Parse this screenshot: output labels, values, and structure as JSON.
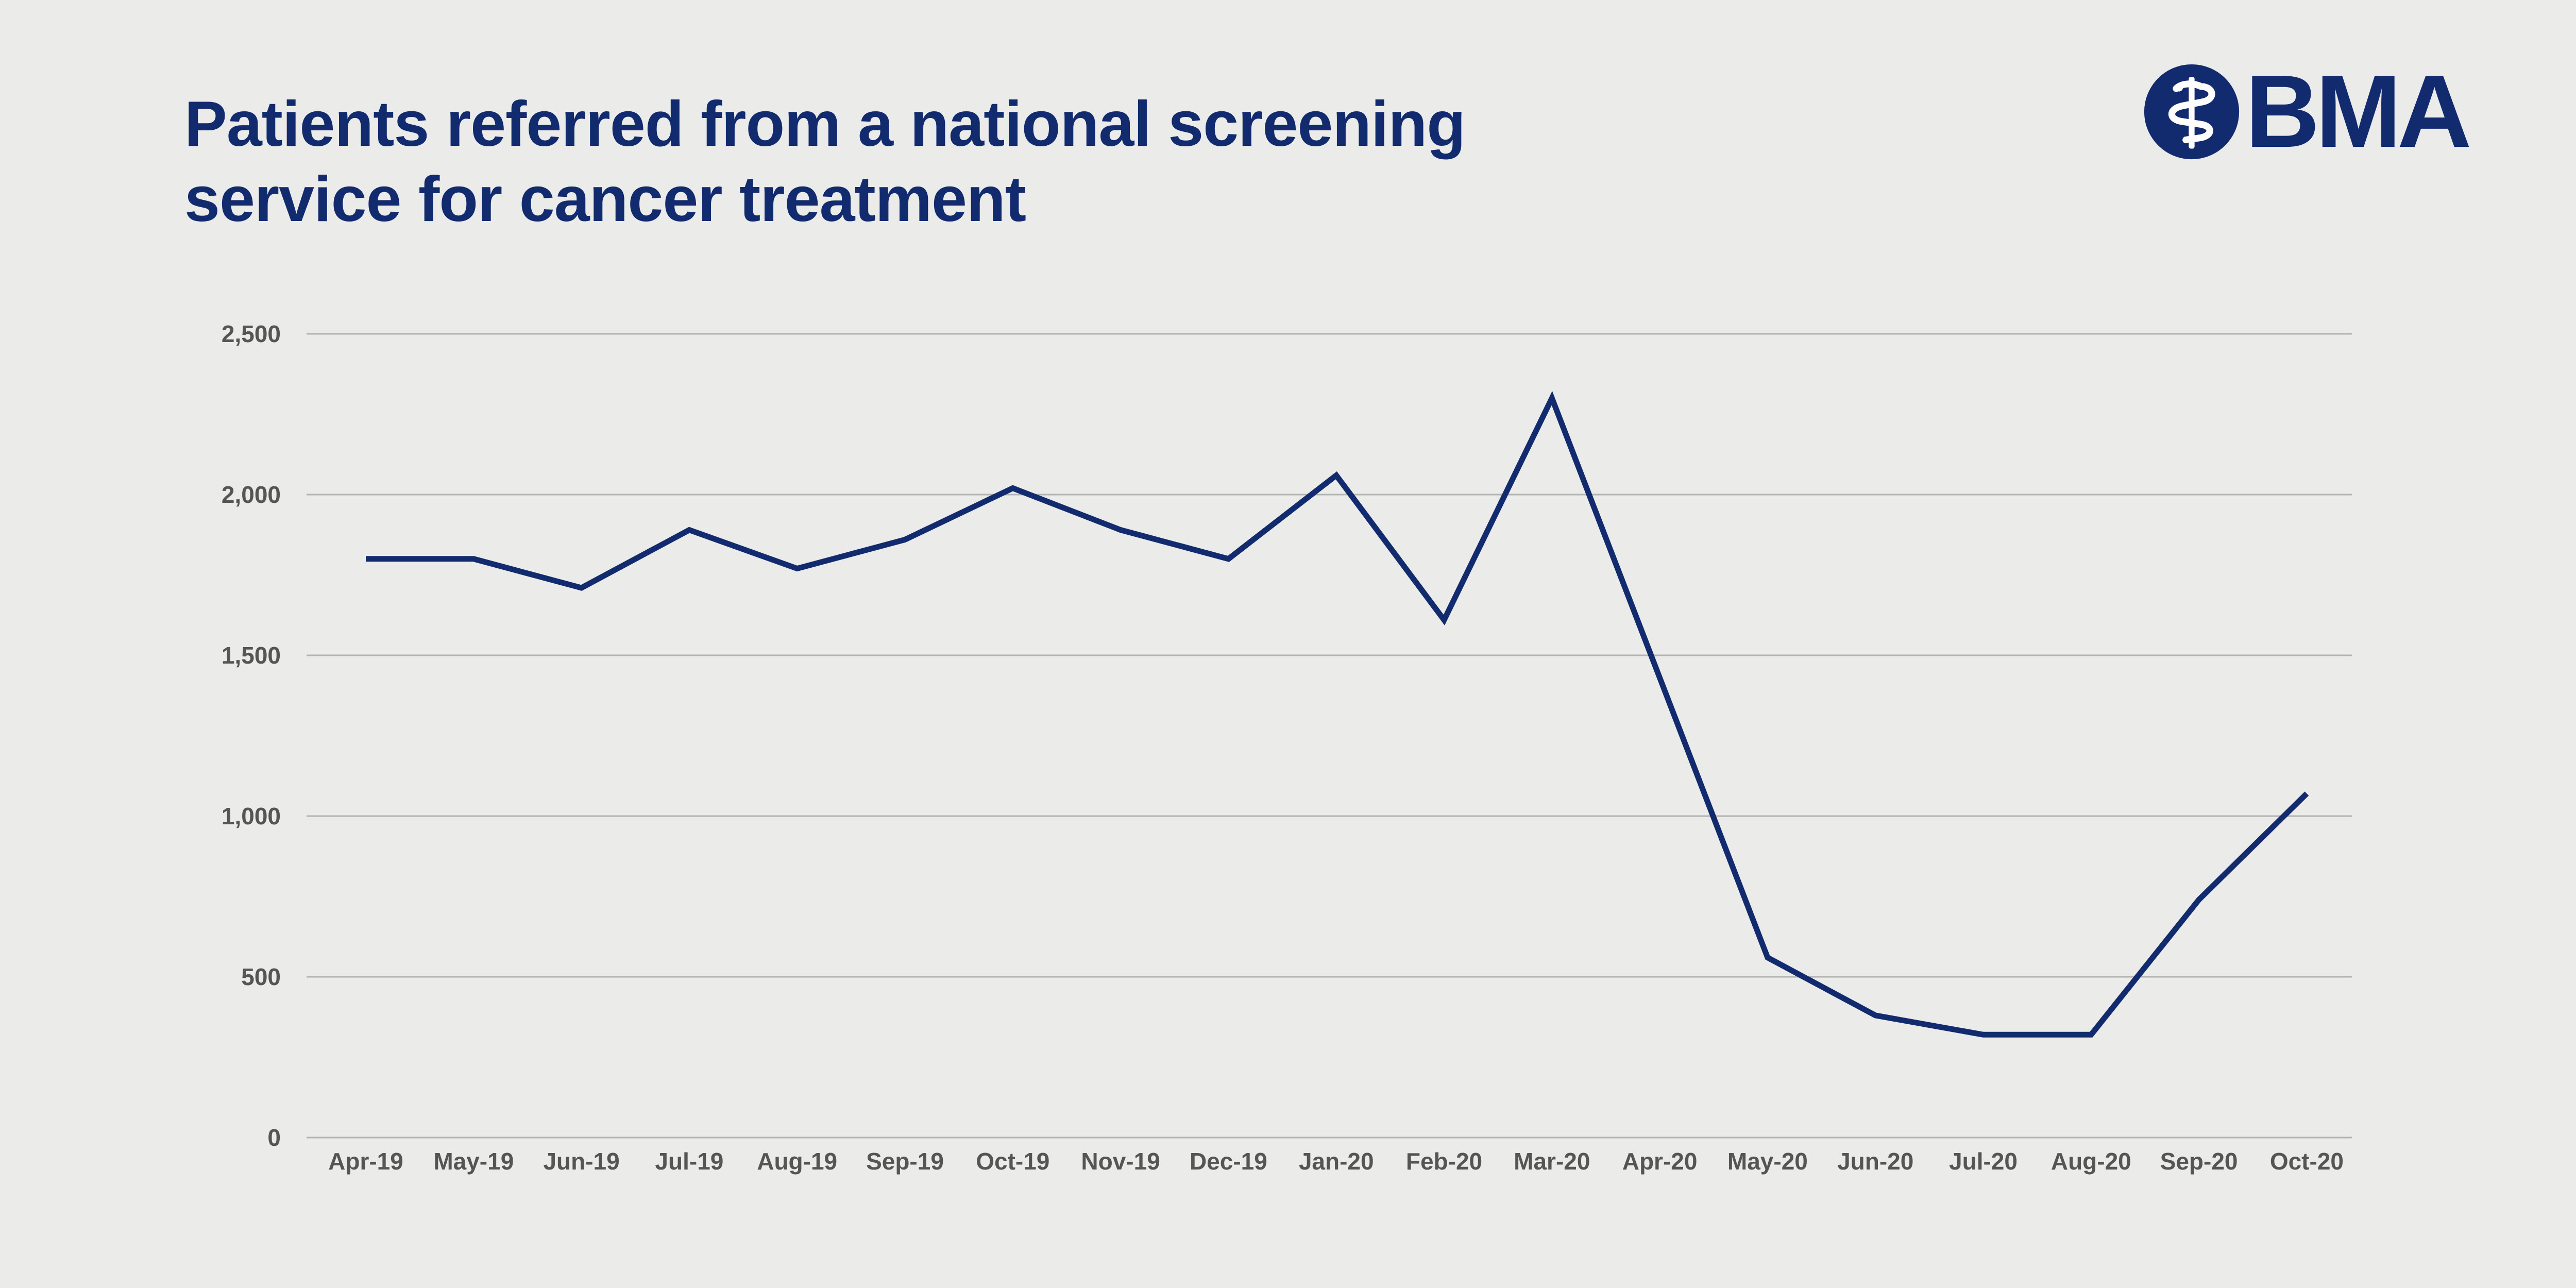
{
  "header": {
    "title_line1": "Patients referred from a national screening",
    "title_line2": "service for cancer treatment"
  },
  "logo": {
    "text": "BMA",
    "icon": "bma-staff-of-asclepius-icon"
  },
  "colors": {
    "background": "#ebebea",
    "brand": "#122b6e",
    "grid": "#b3b3b3",
    "tick_text": "#555555"
  },
  "chart_data": {
    "type": "line",
    "title": "Patients referred from a national screening service for cancer treatment",
    "xlabel": "",
    "ylabel": "",
    "ylim": [
      0,
      2500
    ],
    "yticks": [
      0,
      500,
      1000,
      1500,
      2000,
      2500
    ],
    "ytick_labels": [
      "0",
      "500",
      "1,000",
      "1,500",
      "2,000",
      "2,500"
    ],
    "grid": true,
    "categories": [
      "Apr-19",
      "May-19",
      "Jun-19",
      "Jul-19",
      "Aug-19",
      "Sep-19",
      "Oct-19",
      "Nov-19",
      "Dec-19",
      "Jan-20",
      "Feb-20",
      "Mar-20",
      "Apr-20",
      "May-20",
      "Jun-20",
      "Jul-20",
      "Aug-20",
      "Sep-20",
      "Oct-20"
    ],
    "series": [
      {
        "values": [
          1800,
          1800,
          1710,
          1890,
          1770,
          1860,
          2020,
          1890,
          1800,
          2060,
          1610,
          2300,
          1430,
          560,
          380,
          320,
          320,
          740,
          1070
        ]
      }
    ]
  }
}
